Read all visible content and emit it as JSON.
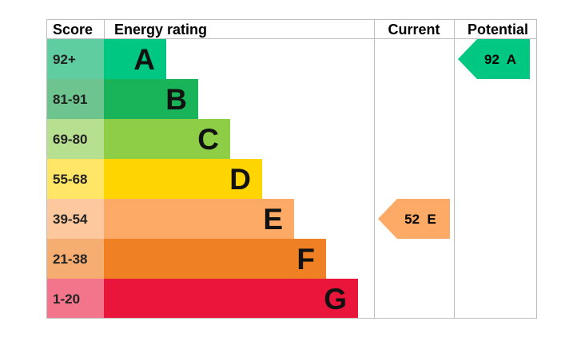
{
  "chart_data": {
    "type": "bar",
    "headers": {
      "score": "Score",
      "energy_rating": "Energy rating",
      "current": "Current",
      "potential": "Potential"
    },
    "bands": [
      {
        "letter": "A",
        "range": "92+",
        "min": 92,
        "max": 100,
        "color": "#00c781",
        "score_bg": "#5fcda0"
      },
      {
        "letter": "B",
        "range": "81-91",
        "min": 81,
        "max": 91,
        "color": "#19b459",
        "score_bg": "#6dc48e"
      },
      {
        "letter": "C",
        "range": "69-80",
        "min": 69,
        "max": 80,
        "color": "#8dce46",
        "score_bg": "#b7df90"
      },
      {
        "letter": "D",
        "range": "55-68",
        "min": 55,
        "max": 68,
        "color": "#ffd500",
        "score_bg": "#ffe666"
      },
      {
        "letter": "E",
        "range": "39-54",
        "min": 39,
        "max": 54,
        "color": "#fcaa65",
        "score_bg": "#fdc89d"
      },
      {
        "letter": "F",
        "range": "21-38",
        "min": 21,
        "max": 38,
        "color": "#ef8023",
        "score_bg": "#f5ad71"
      },
      {
        "letter": "G",
        "range": "1-20",
        "min": 1,
        "max": 20,
        "color": "#e9153b",
        "score_bg": "#f2758b"
      }
    ],
    "current": {
      "value": 52,
      "letter": "E",
      "label": "52  E",
      "color": "#fcaa65",
      "text_color": "#000000"
    },
    "potential": {
      "value": 92,
      "letter": "A",
      "label": "92  A",
      "color": "#00c781",
      "text_color": "#000000"
    }
  }
}
